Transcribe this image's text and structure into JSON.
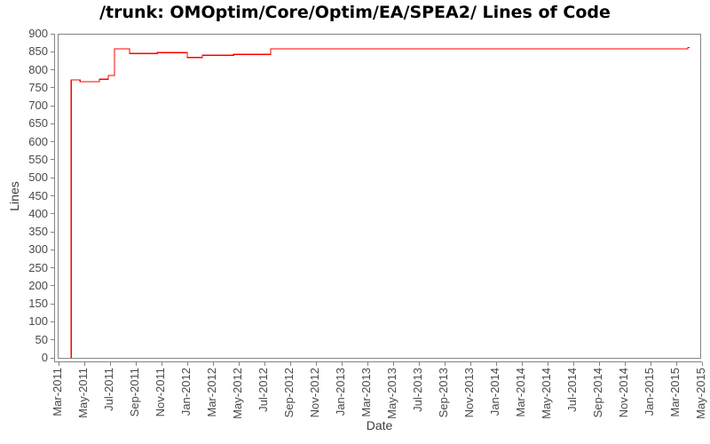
{
  "header": {
    "title": "/trunk: OMOptim/Core/Optim/EA/SPEA2/ Lines of Code"
  },
  "chart_data": {
    "type": "line",
    "subtype": "step",
    "title": "/trunk: OMOptim/Core/Optim/EA/SPEA2/ Lines of Code",
    "xlabel": "Date",
    "ylabel": "Lines",
    "grid": false,
    "legend": false,
    "line_color": "#ff0000",
    "axis_color": "#848484",
    "tick_label_color": "#4a4a4a",
    "ylim": [
      0,
      900
    ],
    "y_ticks": [
      0,
      50,
      100,
      150,
      200,
      250,
      300,
      350,
      400,
      450,
      500,
      550,
      600,
      650,
      700,
      750,
      800,
      850,
      900
    ],
    "x_tick_labels": [
      "Mar-2011",
      "May-2011",
      "Jul-2011",
      "Sep-2011",
      "Nov-2011",
      "Jan-2012",
      "Mar-2012",
      "May-2012",
      "Jul-2012",
      "Sep-2012",
      "Nov-2012",
      "Jan-2013",
      "Mar-2013",
      "May-2013",
      "Jul-2013",
      "Sep-2013",
      "Nov-2013",
      "Jan-2014",
      "Mar-2014",
      "May-2014",
      "Jul-2014",
      "Sep-2014",
      "Nov-2014",
      "Jan-2015",
      "Mar-2015",
      "May-2015"
    ],
    "x_tick_interval_months": 2,
    "series": [
      {
        "name": "Lines of Code",
        "start_value": 0,
        "start_month_offset": 0.97,
        "end_month_offset": 49.05,
        "points": [
          {
            "date": "2011-03-29",
            "month_offset": 0.97,
            "value": 772
          },
          {
            "date": "2011-04-18",
            "month_offset": 1.66,
            "value": 767
          },
          {
            "date": "2011-06-03",
            "month_offset": 3.17,
            "value": 774
          },
          {
            "date": "2011-06-24",
            "month_offset": 3.86,
            "value": 784
          },
          {
            "date": "2011-07-08",
            "month_offset": 4.34,
            "value": 858
          },
          {
            "date": "2011-08-13",
            "month_offset": 5.52,
            "value": 845
          },
          {
            "date": "2011-10-17",
            "month_offset": 7.66,
            "value": 848
          },
          {
            "date": "2012-01-01",
            "month_offset": 10.0,
            "value": 834
          },
          {
            "date": "2012-02-05",
            "month_offset": 11.17,
            "value": 840
          },
          {
            "date": "2012-04-18",
            "month_offset": 13.59,
            "value": 843
          },
          {
            "date": "2012-07-15",
            "month_offset": 16.48,
            "value": 858
          },
          {
            "date": "2015-03-29",
            "month_offset": 48.9,
            "value": 862
          }
        ]
      }
    ]
  }
}
